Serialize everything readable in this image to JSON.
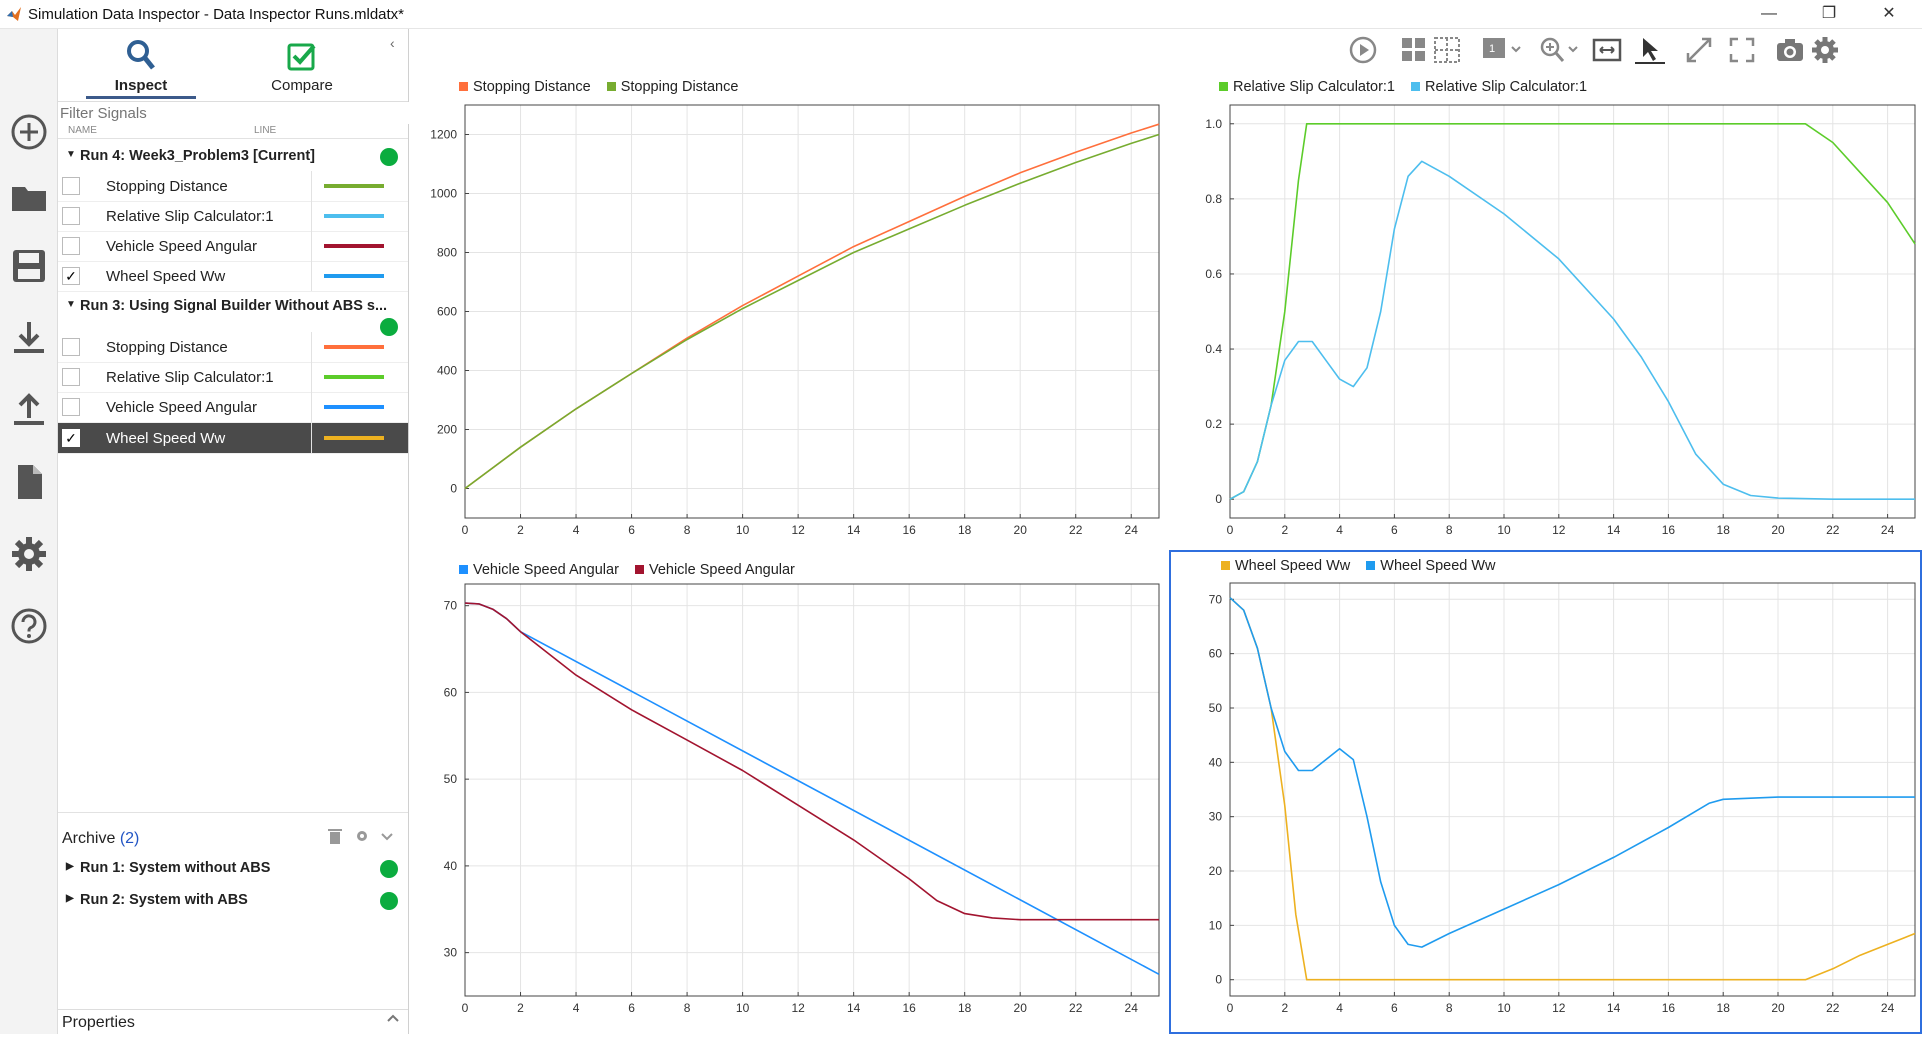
{
  "window": {
    "title": "Simulation Data Inspector - Data Inspector Runs.mldatx*",
    "controls": {
      "minimize": "—",
      "restore": "❐",
      "close": "✕"
    }
  },
  "rail": {
    "icons": [
      "new-icon",
      "folder-icon",
      "save-icon",
      "import-icon",
      "export-icon",
      "report-icon",
      "settings-icon",
      "help-icon"
    ]
  },
  "browser": {
    "tabs": [
      {
        "label": "Inspect",
        "icon": "search-icon",
        "active": true
      },
      {
        "label": "Compare",
        "icon": "check-icon",
        "active": false
      }
    ],
    "collapse_glyph": "‹",
    "filter_placeholder": "Filter Signals",
    "columns": {
      "name": "NAME",
      "line": "LINE"
    },
    "runs": [
      {
        "name": "Run 4: Week3_Problem3 [Current]",
        "expanded": true,
        "signals": [
          {
            "name": "Stopping Distance",
            "checked": false,
            "color": "#77ac30"
          },
          {
            "name": "Relative Slip Calculator:1",
            "checked": false,
            "color": "#4dbeee"
          },
          {
            "name": "Vehicle Speed Angular",
            "checked": false,
            "color": "#a2142f"
          },
          {
            "name": "Wheel Speed Ww",
            "checked": true,
            "color": "#1f9bef"
          }
        ]
      },
      {
        "name": "Run 3: Using Signal Builder Without ABS s...",
        "expanded": true,
        "signals": [
          {
            "name": "Stopping Distance",
            "checked": false,
            "color": "#ff6f3c"
          },
          {
            "name": "Relative Slip Calculator:1",
            "checked": false,
            "color": "#5ccc2a"
          },
          {
            "name": "Vehicle Speed Angular",
            "checked": false,
            "color": "#1e90ff"
          },
          {
            "name": "Wheel Speed Ww",
            "checked": true,
            "color": "#edb120",
            "selected": true
          }
        ]
      }
    ],
    "archive": {
      "label": "Archive",
      "count": "(2)",
      "runs": [
        {
          "name": "Run 1: System without ABS"
        },
        {
          "name": "Run 2: System with ABS"
        }
      ]
    },
    "properties_label": "Properties",
    "checkmark": "✓",
    "status_color": "#0bac3f"
  },
  "toolbar": {
    "icons": [
      "play-icon",
      "layout-grid-icon",
      "layout-subplot-icon",
      "visualization-icon",
      "zoom-icon",
      "fit-to-view-icon",
      "cursor-icon",
      "expand-icon",
      "fullscreen-icon",
      "snapshot-icon",
      "gear-icon"
    ]
  },
  "chart_data": [
    {
      "type": "line",
      "panel": "top-left",
      "legend": [
        "Stopping Distance",
        "Stopping Distance"
      ],
      "xlim": [
        0,
        25
      ],
      "ylim": [
        -100,
        1300
      ],
      "xticks": [
        0,
        2,
        4,
        6,
        8,
        10,
        12,
        14,
        16,
        18,
        20,
        22,
        24
      ],
      "yticks": [
        0,
        200,
        400,
        600,
        800,
        1000,
        1200
      ],
      "ytick_labels": [
        "0",
        "200",
        "400",
        "600",
        "800",
        "1000",
        "1200"
      ],
      "series": [
        {
          "name": "Stopping Distance",
          "color": "#ff6f3c",
          "x": [
            0,
            2,
            4,
            6,
            8,
            10,
            12,
            14,
            16,
            18,
            20,
            22,
            24,
            25
          ],
          "y": [
            0,
            140,
            270,
            390,
            510,
            620,
            720,
            820,
            905,
            990,
            1070,
            1140,
            1205,
            1235
          ]
        },
        {
          "name": "Stopping Distance",
          "color": "#77ac30",
          "x": [
            0,
            2,
            4,
            6,
            8,
            10,
            12,
            14,
            16,
            18,
            20,
            22,
            24,
            25
          ],
          "y": [
            0,
            140,
            270,
            390,
            505,
            610,
            705,
            800,
            880,
            960,
            1035,
            1105,
            1170,
            1200
          ]
        }
      ]
    },
    {
      "type": "line",
      "panel": "top-right",
      "legend": [
        "Relative Slip Calculator:1",
        "Relative Slip Calculator:1"
      ],
      "xlim": [
        0,
        25
      ],
      "ylim": [
        -0.05,
        1.05
      ],
      "xticks": [
        0,
        2,
        4,
        6,
        8,
        10,
        12,
        14,
        16,
        18,
        20,
        22,
        24
      ],
      "yticks": [
        0,
        0.2,
        0.4,
        0.6,
        0.8,
        1.0
      ],
      "ytick_labels": [
        "0",
        "0.2",
        "0.4",
        "0.6",
        "0.8",
        "1.0"
      ],
      "series": [
        {
          "name": "Relative Slip Calculator:1",
          "color": "#5ccc2a",
          "x": [
            0,
            0.5,
            1,
            1.5,
            2,
            2.5,
            2.8,
            21,
            22,
            23,
            24,
            25
          ],
          "y": [
            0,
            0.02,
            0.1,
            0.25,
            0.5,
            0.85,
            1.0,
            1.0,
            0.95,
            0.87,
            0.79,
            0.68
          ]
        },
        {
          "name": "Relative Slip Calculator:1",
          "color": "#4dbeee",
          "x": [
            0,
            0.5,
            1,
            1.5,
            2,
            2.5,
            3,
            3.5,
            4,
            4.5,
            5,
            5.5,
            6,
            6.5,
            7,
            8,
            10,
            12,
            14,
            15,
            16,
            17,
            18,
            19,
            20,
            22,
            25
          ],
          "y": [
            0,
            0.02,
            0.1,
            0.25,
            0.37,
            0.42,
            0.42,
            0.37,
            0.32,
            0.3,
            0.35,
            0.5,
            0.72,
            0.86,
            0.9,
            0.86,
            0.76,
            0.64,
            0.48,
            0.38,
            0.26,
            0.12,
            0.04,
            0.01,
            0.003,
            0.0,
            0.0
          ]
        }
      ]
    },
    {
      "type": "line",
      "panel": "bottom-left",
      "legend": [
        "Vehicle Speed Angular",
        "Vehicle Speed Angular"
      ],
      "xlim": [
        0,
        25
      ],
      "ylim": [
        25,
        72.5
      ],
      "xticks": [
        0,
        2,
        4,
        6,
        8,
        10,
        12,
        14,
        16,
        18,
        20,
        22,
        24
      ],
      "yticks": [
        30,
        40,
        50,
        60,
        70
      ],
      "ytick_labels": [
        "30",
        "40",
        "50",
        "60",
        "70"
      ],
      "series": [
        {
          "name": "Vehicle Speed Angular",
          "color": "#1e90ff",
          "x": [
            0,
            0.5,
            1,
            1.5,
            2,
            25
          ],
          "y": [
            70.3,
            70.2,
            69.6,
            68.5,
            67.0,
            27.5
          ]
        },
        {
          "name": "Vehicle Speed Angular",
          "color": "#a2142f",
          "x": [
            0,
            0.5,
            1,
            1.5,
            2,
            4,
            6,
            8,
            10,
            12,
            14,
            16,
            17,
            18,
            19,
            20,
            22,
            25
          ],
          "y": [
            70.3,
            70.2,
            69.6,
            68.5,
            67.0,
            62.0,
            58.0,
            54.5,
            51.0,
            47.0,
            43.0,
            38.5,
            36.0,
            34.5,
            34.0,
            33.8,
            33.8,
            33.8
          ]
        }
      ]
    },
    {
      "type": "line",
      "panel": "bottom-right",
      "legend": [
        "Wheel Speed Ww",
        "Wheel Speed Ww"
      ],
      "xlim": [
        0,
        25
      ],
      "ylim": [
        -3,
        73
      ],
      "xticks": [
        0,
        2,
        4,
        6,
        8,
        10,
        12,
        14,
        16,
        18,
        20,
        22,
        24
      ],
      "yticks": [
        0,
        10,
        20,
        30,
        40,
        50,
        60,
        70
      ],
      "ytick_labels": [
        "0",
        "10",
        "20",
        "30",
        "40",
        "50",
        "60",
        "70"
      ],
      "series": [
        {
          "name": "Wheel Speed Ww",
          "color": "#edb120",
          "x": [
            0,
            0.5,
            1,
            1.5,
            2,
            2.4,
            2.8,
            21,
            22,
            23,
            24,
            25
          ],
          "y": [
            70.3,
            68,
            61,
            50,
            32,
            12,
            0,
            0,
            2,
            4.5,
            6.5,
            8.5
          ]
        },
        {
          "name": "Wheel Speed Ww",
          "color": "#1f9bef",
          "x": [
            0,
            0.5,
            1,
            1.5,
            2,
            2.5,
            3,
            3.5,
            4,
            4.5,
            5,
            5.5,
            6,
            6.5,
            7,
            8,
            10,
            12,
            14,
            16,
            17,
            17.5,
            18,
            20,
            22,
            25
          ],
          "y": [
            70.3,
            68,
            61,
            50,
            42,
            38.5,
            38.5,
            40.5,
            42.5,
            40.5,
            30,
            18,
            10,
            6.5,
            6,
            8.5,
            13,
            17.5,
            22.5,
            28,
            31,
            32.5,
            33.2,
            33.6,
            33.6,
            33.6
          ]
        }
      ]
    }
  ]
}
